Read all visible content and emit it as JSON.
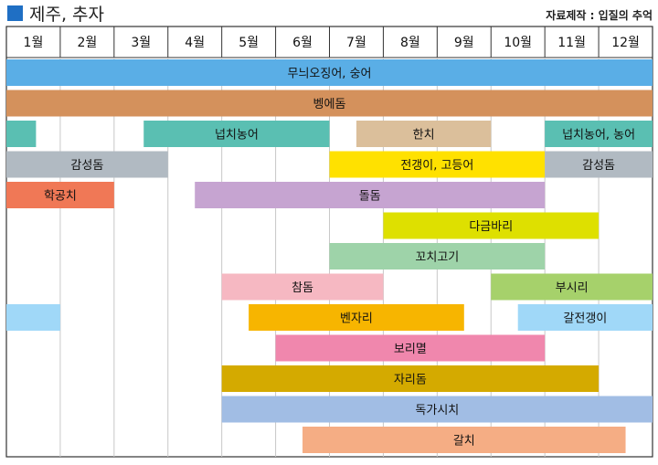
{
  "header": {
    "title": "제주, 추자",
    "source": "자료제작 : 입질의 추억",
    "marker_color": "#1f6fc4"
  },
  "chart_data": {
    "type": "gantt",
    "months": [
      "1월",
      "2월",
      "3월",
      "4월",
      "5월",
      "6월",
      "7월",
      "8월",
      "9월",
      "10월",
      "11월",
      "12월"
    ],
    "xlim": [
      1,
      13
    ],
    "grid": true,
    "rows": [
      {
        "segments": [
          {
            "label": "무늬오징어, 숭어",
            "start": 1.0,
            "end": 13.0,
            "color": "#5aaee6"
          }
        ]
      },
      {
        "segments": [
          {
            "label": "벵에돔",
            "start": 1.0,
            "end": 13.0,
            "color": "#d4915c"
          }
        ]
      },
      {
        "segments": [
          {
            "label": "",
            "start": 1.0,
            "end": 1.55,
            "color": "#5abfb2"
          },
          {
            "label": "넙치농어",
            "start": 3.55,
            "end": 7.0,
            "color": "#5abfb2"
          },
          {
            "label": "한치",
            "start": 7.5,
            "end": 10.0,
            "color": "#dbbf9b"
          },
          {
            "label": "넙치농어, 농어",
            "start": 11.0,
            "end": 13.0,
            "color": "#5abfb2"
          }
        ]
      },
      {
        "segments": [
          {
            "label": "감성돔",
            "start": 1.0,
            "end": 4.0,
            "color": "#b1bac2"
          },
          {
            "label": "전갱이, 고등어",
            "start": 7.0,
            "end": 11.0,
            "color": "#ffe100"
          },
          {
            "label": "감성돔",
            "start": 11.0,
            "end": 13.0,
            "color": "#b1bac2"
          }
        ]
      },
      {
        "segments": [
          {
            "label": "학공치",
            "start": 1.0,
            "end": 3.0,
            "color": "#f07856"
          },
          {
            "label": "돌돔",
            "start": 4.5,
            "end": 11.0,
            "color": "#c6a4d1"
          }
        ]
      },
      {
        "segments": [
          {
            "label": "다금바리",
            "start": 8.0,
            "end": 12.0,
            "color": "#dee000"
          }
        ]
      },
      {
        "segments": [
          {
            "label": "꼬치고기",
            "start": 7.0,
            "end": 11.0,
            "color": "#9ed3a9"
          }
        ]
      },
      {
        "segments": [
          {
            "label": "참돔",
            "start": 5.0,
            "end": 8.0,
            "color": "#f6b8c2"
          },
          {
            "label": "부시리",
            "start": 10.0,
            "end": 13.0,
            "color": "#a6d16b"
          }
        ]
      },
      {
        "segments": [
          {
            "label": "",
            "start": 1.0,
            "end": 2.0,
            "color": "#a0d8f8"
          },
          {
            "label": "벤자리",
            "start": 5.5,
            "end": 9.5,
            "color": "#f7b500"
          },
          {
            "label": "갈전갱이",
            "start": 10.5,
            "end": 13.0,
            "color": "#a0d8f8"
          }
        ]
      },
      {
        "segments": [
          {
            "label": "보리멸",
            "start": 6.0,
            "end": 11.0,
            "color": "#f087ad"
          }
        ]
      },
      {
        "segments": [
          {
            "label": "자리돔",
            "start": 5.0,
            "end": 12.0,
            "color": "#d4aa00"
          }
        ]
      },
      {
        "segments": [
          {
            "label": "독가시치",
            "start": 5.0,
            "end": 13.0,
            "color": "#a1bde4"
          }
        ]
      },
      {
        "segments": [
          {
            "label": "갈치",
            "start": 6.5,
            "end": 12.5,
            "color": "#f5ad84"
          }
        ]
      }
    ]
  }
}
